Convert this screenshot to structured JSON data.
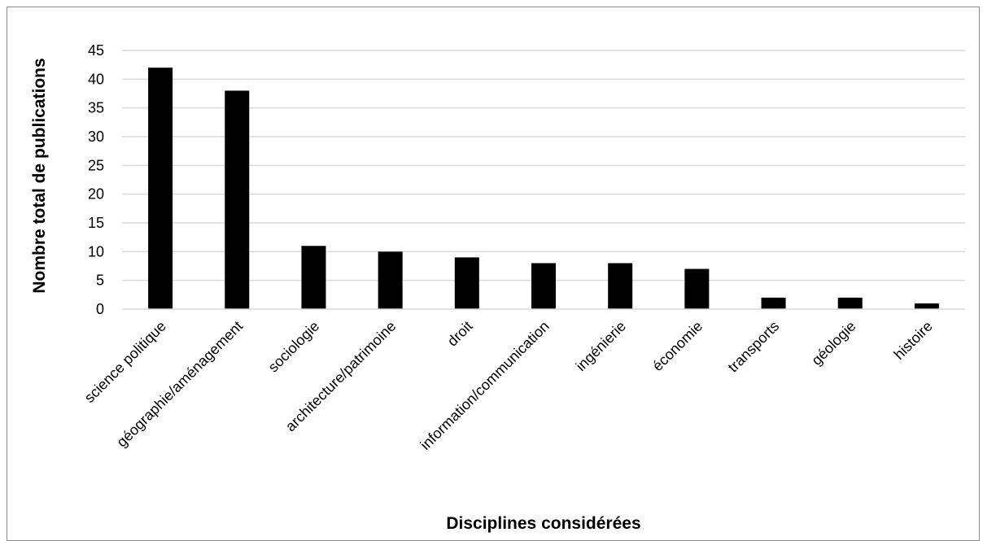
{
  "chart_data": {
    "type": "bar",
    "categories": [
      "science politique",
      "géographie/aménagement",
      "sociologie",
      "architecture/patrimoine",
      "droit",
      "information/communication",
      "ingénierie",
      "économie",
      "transports",
      "géologie",
      "histoire"
    ],
    "values": [
      42,
      38,
      11,
      10,
      9,
      8,
      8,
      7,
      2,
      2,
      1
    ],
    "xlabel": "Disciplines considérées",
    "ylabel": "Nombre total de publications",
    "ylim": [
      0,
      45
    ],
    "yticks": [
      0,
      5,
      10,
      15,
      20,
      25,
      30,
      35,
      40,
      45
    ],
    "grid": true,
    "bar_color": "#000000",
    "grid_color": "#d9d9d9"
  }
}
